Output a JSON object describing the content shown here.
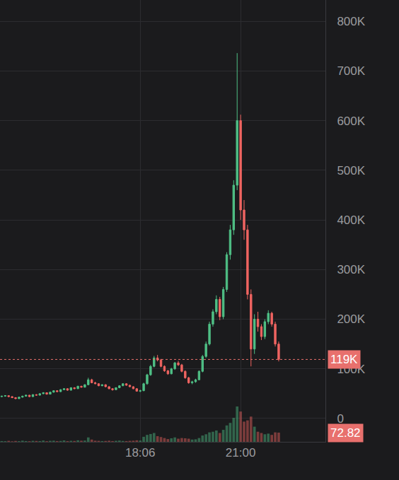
{
  "chart_data": {
    "type": "candlestick",
    "categories": [
      null,
      null,
      null,
      null,
      null,
      null,
      null,
      null,
      null,
      null,
      null,
      null,
      null,
      null,
      null,
      null,
      null,
      null,
      null,
      null,
      null,
      null,
      null,
      null,
      null,
      null,
      null,
      null,
      null,
      null,
      null,
      null,
      null,
      null,
      null,
      null,
      null,
      null,
      null,
      null,
      "18:06",
      null,
      null,
      null,
      null,
      null,
      null,
      null,
      null,
      null,
      null,
      null,
      null,
      null,
      null,
      null,
      null,
      null,
      null,
      null,
      null,
      null,
      null,
      null,
      null,
      null,
      null,
      null,
      null,
      "21:00",
      null,
      null,
      null,
      null,
      null,
      null,
      null,
      null,
      null,
      null,
      null,
      null,
      null,
      null,
      null,
      null,
      null,
      null,
      null,
      null,
      null,
      null,
      null,
      null
    ],
    "open": [
      44000,
      45000,
      46000,
      44000,
      42000,
      40000,
      43000,
      45000,
      47000,
      44000,
      48000,
      47000,
      50000,
      52000,
      49000,
      53000,
      56000,
      54000,
      58000,
      60000,
      57000,
      62000,
      60000,
      65000,
      63000,
      68000,
      78000,
      72000,
      70000,
      66000,
      68000,
      64000,
      60000,
      58000,
      62000,
      66000,
      70000,
      67000,
      64000,
      60000,
      55000,
      56000,
      70000,
      88000,
      105000,
      122000,
      118000,
      105000,
      96000,
      90000,
      100000,
      112000,
      108000,
      95000,
      82000,
      72000,
      74000,
      78000,
      95000,
      125000,
      150000,
      190000,
      215000,
      240000,
      205000,
      260000,
      330000,
      380000,
      470000,
      600000,
      420000,
      380000,
      250000,
      140000,
      200000,
      185000,
      165000,
      195000,
      212000,
      190000,
      150000,
      null,
      null,
      null,
      null,
      null,
      null,
      null,
      null,
      null,
      null,
      null,
      null,
      null
    ],
    "high": [
      46000,
      47000,
      46500,
      45000,
      43000,
      44000,
      46000,
      48000,
      47500,
      49000,
      49000,
      51000,
      53000,
      52500,
      54000,
      57000,
      57000,
      59000,
      61000,
      61000,
      63000,
      63000,
      66000,
      66000,
      69000,
      82000,
      80000,
      74000,
      71000,
      69000,
      69000,
      65000,
      61000,
      63000,
      67000,
      71000,
      71000,
      68000,
      65000,
      61000,
      58000,
      72000,
      90000,
      108000,
      126000,
      128000,
      120000,
      107000,
      98000,
      102000,
      114000,
      116000,
      110000,
      97000,
      84000,
      76000,
      80000,
      97000,
      128000,
      155000,
      195000,
      220000,
      248000,
      245000,
      265000,
      335000,
      390000,
      480000,
      736000,
      612000,
      440000,
      390000,
      260000,
      210000,
      215000,
      190000,
      200000,
      218000,
      215000,
      195000,
      155000,
      null,
      null,
      null,
      null,
      null,
      null,
      null,
      null,
      null,
      null,
      null,
      null,
      null
    ],
    "low": [
      43000,
      44000,
      43000,
      41000,
      39000,
      39500,
      42000,
      44000,
      43000,
      43500,
      46000,
      46500,
      49000,
      48000,
      48500,
      52000,
      53000,
      53500,
      57000,
      56000,
      56500,
      59000,
      59500,
      62000,
      62500,
      67000,
      71000,
      69000,
      65000,
      65000,
      63000,
      59000,
      56000,
      57000,
      61000,
      65000,
      66000,
      63000,
      59000,
      54000,
      53000,
      55000,
      68000,
      86000,
      103000,
      115000,
      103000,
      94000,
      88000,
      89000,
      98000,
      106000,
      93000,
      80000,
      70000,
      69000,
      72000,
      77000,
      93000,
      122000,
      147000,
      185000,
      210000,
      198000,
      200000,
      255000,
      320000,
      370000,
      460000,
      400000,
      360000,
      240000,
      105000,
      130000,
      175000,
      158000,
      160000,
      190000,
      185000,
      145000,
      115000,
      null,
      null,
      null,
      null,
      null,
      null,
      null,
      null,
      null,
      null,
      null,
      null,
      null
    ],
    "close": [
      45000,
      46000,
      44000,
      42000,
      40000,
      43000,
      45000,
      47000,
      44000,
      48000,
      47000,
      50000,
      52000,
      49000,
      53000,
      56000,
      54000,
      58000,
      60000,
      57000,
      62000,
      60000,
      65000,
      63000,
      68000,
      78000,
      72000,
      70000,
      66000,
      68000,
      64000,
      60000,
      58000,
      62000,
      66000,
      70000,
      67000,
      64000,
      60000,
      55000,
      56000,
      70000,
      88000,
      105000,
      122000,
      118000,
      105000,
      96000,
      90000,
      100000,
      112000,
      108000,
      95000,
      82000,
      72000,
      74000,
      78000,
      95000,
      125000,
      150000,
      190000,
      215000,
      240000,
      205000,
      260000,
      330000,
      380000,
      470000,
      600000,
      420000,
      380000,
      250000,
      140000,
      200000,
      185000,
      165000,
      195000,
      212000,
      190000,
      150000,
      119000,
      null,
      null,
      null,
      null,
      null,
      null,
      null,
      null,
      null,
      null,
      null,
      null,
      null
    ],
    "volume": [
      6,
      5,
      8,
      4,
      7,
      5,
      9,
      6,
      5,
      8,
      7,
      6,
      10,
      5,
      8,
      9,
      6,
      7,
      11,
      6,
      8,
      7,
      12,
      9,
      10,
      35,
      18,
      9,
      8,
      6,
      7,
      9,
      6,
      8,
      10,
      7,
      6,
      8,
      9,
      12,
      10,
      40,
      55,
      62,
      70,
      45,
      38,
      30,
      22,
      28,
      35,
      25,
      30,
      28,
      25,
      18,
      20,
      30,
      50,
      60,
      75,
      80,
      90,
      70,
      95,
      130,
      150,
      190,
      280,
      240,
      160,
      170,
      200,
      120,
      80,
      70,
      60,
      65,
      55,
      75,
      72.82,
      null,
      null,
      null,
      null,
      null,
      null,
      null,
      null,
      null,
      null,
      null,
      null,
      null
    ],
    "colors": {
      "up": "#4fbf85",
      "down": "#ef6461"
    },
    "ylim": [
      -47000,
      843000
    ],
    "yticks": [
      0,
      {
        "value": 100000,
        "label": "100K"
      },
      {
        "value": 200000,
        "label": "200K"
      },
      {
        "value": 300000,
        "label": "300K"
      },
      {
        "value": 400000,
        "label": "400K"
      },
      {
        "value": 500000,
        "label": "500K"
      },
      {
        "value": 600000,
        "label": "600K"
      },
      {
        "value": 700000,
        "label": "700K"
      },
      {
        "value": 800000,
        "label": "800K"
      }
    ],
    "y2lim": [
      0,
      3500
    ],
    "y2ticks": [],
    "current_price": {
      "value": 119000,
      "label": "119K",
      "color": "#e8706d"
    },
    "current_volume": {
      "value": 72.82,
      "label": "72.82",
      "color": "#e8706d"
    },
    "grid": true
  }
}
